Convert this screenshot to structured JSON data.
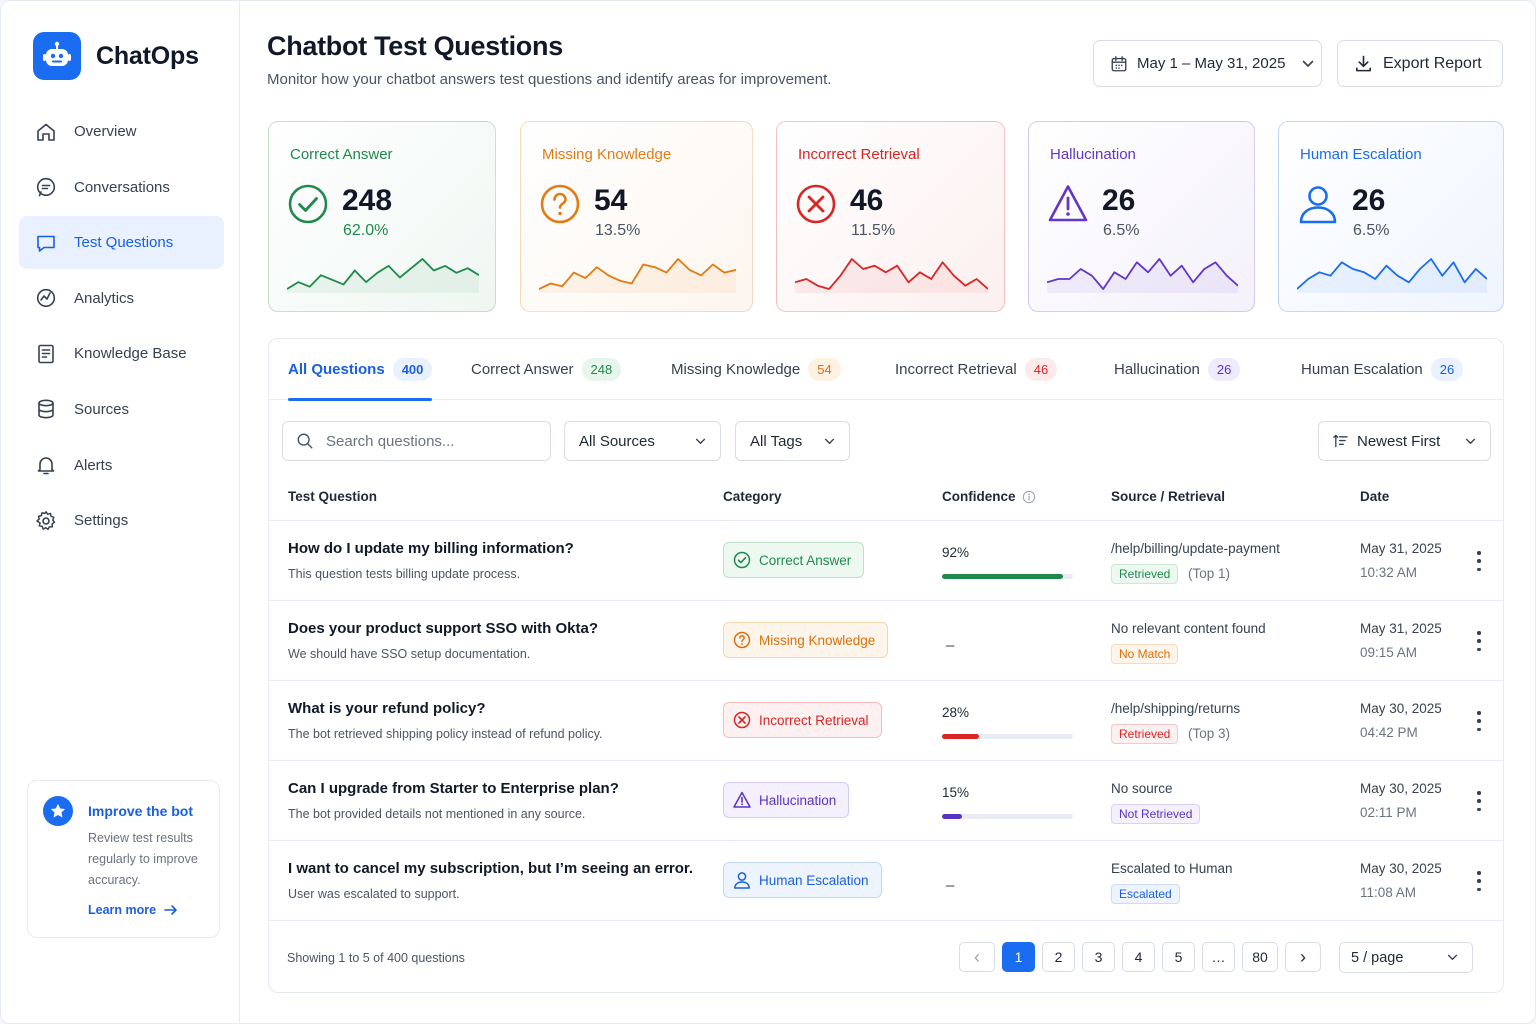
{
  "app": {
    "name": "ChatOps"
  },
  "nav": [
    {
      "label": "Overview",
      "icon": "home-icon",
      "active": false
    },
    {
      "label": "Conversations",
      "icon": "chat-icon",
      "active": false
    },
    {
      "label": "Test Questions",
      "icon": "message-square-icon",
      "active": true
    },
    {
      "label": "Analytics",
      "icon": "analytics-icon",
      "active": false
    },
    {
      "label": "Knowledge Base",
      "icon": "book-icon",
      "active": false
    },
    {
      "label": "Sources",
      "icon": "database-icon",
      "active": false
    },
    {
      "label": "Alerts",
      "icon": "bell-icon",
      "active": false
    },
    {
      "label": "Settings",
      "icon": "gear-icon",
      "active": false
    }
  ],
  "promo": {
    "title": "Improve the bot",
    "body": "Review test results regularly to improve accuracy.",
    "link": "Learn more"
  },
  "header": {
    "title": "Chatbot Test Questions",
    "subtitle": "Monitor how your chatbot answers test questions and identify areas for improvement.",
    "date_range": "May 1 – May 31, 2025",
    "export_label": "Export Report"
  },
  "cards": [
    {
      "label": "Correct Answer",
      "value": "248",
      "pct": "62.0%",
      "color": "#1f8a4c",
      "spark": [
        3,
        6,
        4,
        9,
        7,
        5,
        11,
        6,
        10,
        13,
        8,
        12,
        16,
        11,
        13,
        10,
        12,
        9
      ]
    },
    {
      "label": "Missing Knowledge",
      "value": "54",
      "pct": "13.5%",
      "color": "#e27b14",
      "spark": [
        4,
        6,
        5,
        10,
        8,
        12,
        9,
        7,
        6,
        13,
        12,
        10,
        15,
        11,
        9,
        13,
        10,
        11
      ]
    },
    {
      "label": "Incorrect Retrieval",
      "value": "46",
      "pct": "11.5%",
      "color": "#d92525",
      "spark": [
        7,
        8,
        6,
        5,
        9,
        14,
        11,
        12,
        10,
        12,
        7,
        10,
        8,
        13,
        9,
        6,
        8,
        5
      ]
    },
    {
      "label": "Hallucination",
      "value": "26",
      "pct": "6.5%",
      "color": "#6236c9",
      "spark": [
        5,
        6,
        6,
        9,
        7,
        3,
        8,
        6,
        11,
        8,
        12,
        7,
        10,
        5,
        9,
        11,
        7,
        4
      ]
    },
    {
      "label": "Human Escalation",
      "value": "26",
      "pct": "6.5%",
      "color": "#1a6cf0",
      "spark": [
        4,
        7,
        9,
        8,
        12,
        10,
        9,
        7,
        11,
        8,
        6,
        10,
        13,
        8,
        12,
        6,
        10,
        7
      ]
    }
  ],
  "tabs": [
    {
      "label": "All Questions",
      "count": "400",
      "active": true,
      "color": "#1a5fe0",
      "bg": "#e9f1fe"
    },
    {
      "label": "Correct Answer",
      "count": "248",
      "active": false,
      "color": "#1f8a4c",
      "bg": "#e7f6ec"
    },
    {
      "label": "Missing Knowledge",
      "count": "54",
      "active": false,
      "color": "#d9700e",
      "bg": "#fdf1e2"
    },
    {
      "label": "Incorrect Retrieval",
      "count": "46",
      "active": false,
      "color": "#d92525",
      "bg": "#fdeaea"
    },
    {
      "label": "Hallucination",
      "count": "26",
      "active": false,
      "color": "#5b33c2",
      "bg": "#efeafc"
    },
    {
      "label": "Human Escalation",
      "count": "26",
      "active": false,
      "color": "#1a5fe0",
      "bg": "#e9f1fe"
    }
  ],
  "filters": {
    "search_placeholder": "Search questions...",
    "sources": "All Sources",
    "tags": "All Tags",
    "sort": "Newest First"
  },
  "columns": [
    "Test Question",
    "Category",
    "Confidence",
    "Source / Retrieval",
    "Date"
  ],
  "rows": [
    {
      "question": "How do I update my billing information?",
      "sub": "This question tests billing update process.",
      "category": "Correct Answer",
      "cat_key": "correct",
      "confidence": "92%",
      "conf_value": 0.92,
      "source": "/help/billing/update-payment",
      "badge": "Retrieved",
      "badge_key": "retrieved",
      "rank": "(Top 1)",
      "date": "May 31, 2025",
      "time": "10:32 AM"
    },
    {
      "question": "Does your product support SSO with Okta?",
      "sub": "We should have SSO setup documentation.",
      "category": "Missing Knowledge",
      "cat_key": "missing",
      "confidence": "–",
      "conf_value": null,
      "source": "No relevant content found",
      "badge": "No Match",
      "badge_key": "nomatch",
      "rank": "",
      "date": "May 31, 2025",
      "time": "09:15 AM"
    },
    {
      "question": "What is your refund policy?",
      "sub": "The bot retrieved shipping policy instead of refund policy.",
      "category": "Incorrect Retrieval",
      "cat_key": "incorrect",
      "confidence": "28%",
      "conf_value": 0.28,
      "source": "/help/shipping/returns",
      "badge": "Retrieved",
      "badge_key": "retrieved_red",
      "rank": "(Top 3)",
      "date": "May 30, 2025",
      "time": "04:42 PM"
    },
    {
      "question": "Can I upgrade from Starter to Enterprise plan?",
      "sub": "The bot provided details not mentioned in any source.",
      "category": "Hallucination",
      "cat_key": "hallucination",
      "confidence": "15%",
      "conf_value": 0.15,
      "source": "No source",
      "badge": "Not Retrieved",
      "badge_key": "notretrieved",
      "rank": "",
      "date": "May 30, 2025",
      "time": "02:11 PM"
    },
    {
      "question": "I want to cancel my subscription, but I’m seeing an error.",
      "sub": "User was escalated to support.",
      "category": "Human Escalation",
      "cat_key": "escalation",
      "confidence": "–",
      "conf_value": null,
      "source": "Escalated to Human",
      "badge": "Escalated",
      "badge_key": "escalated",
      "rank": "",
      "date": "May 30, 2025",
      "time": "11:08 AM"
    }
  ],
  "pagination": {
    "showing": "Showing 1 to 5 of 400 questions",
    "prev": "‹",
    "pages": [
      "1",
      "2",
      "3",
      "4",
      "5",
      "…",
      "80"
    ],
    "next": "›",
    "current": "1",
    "per_page": "5 / page"
  }
}
